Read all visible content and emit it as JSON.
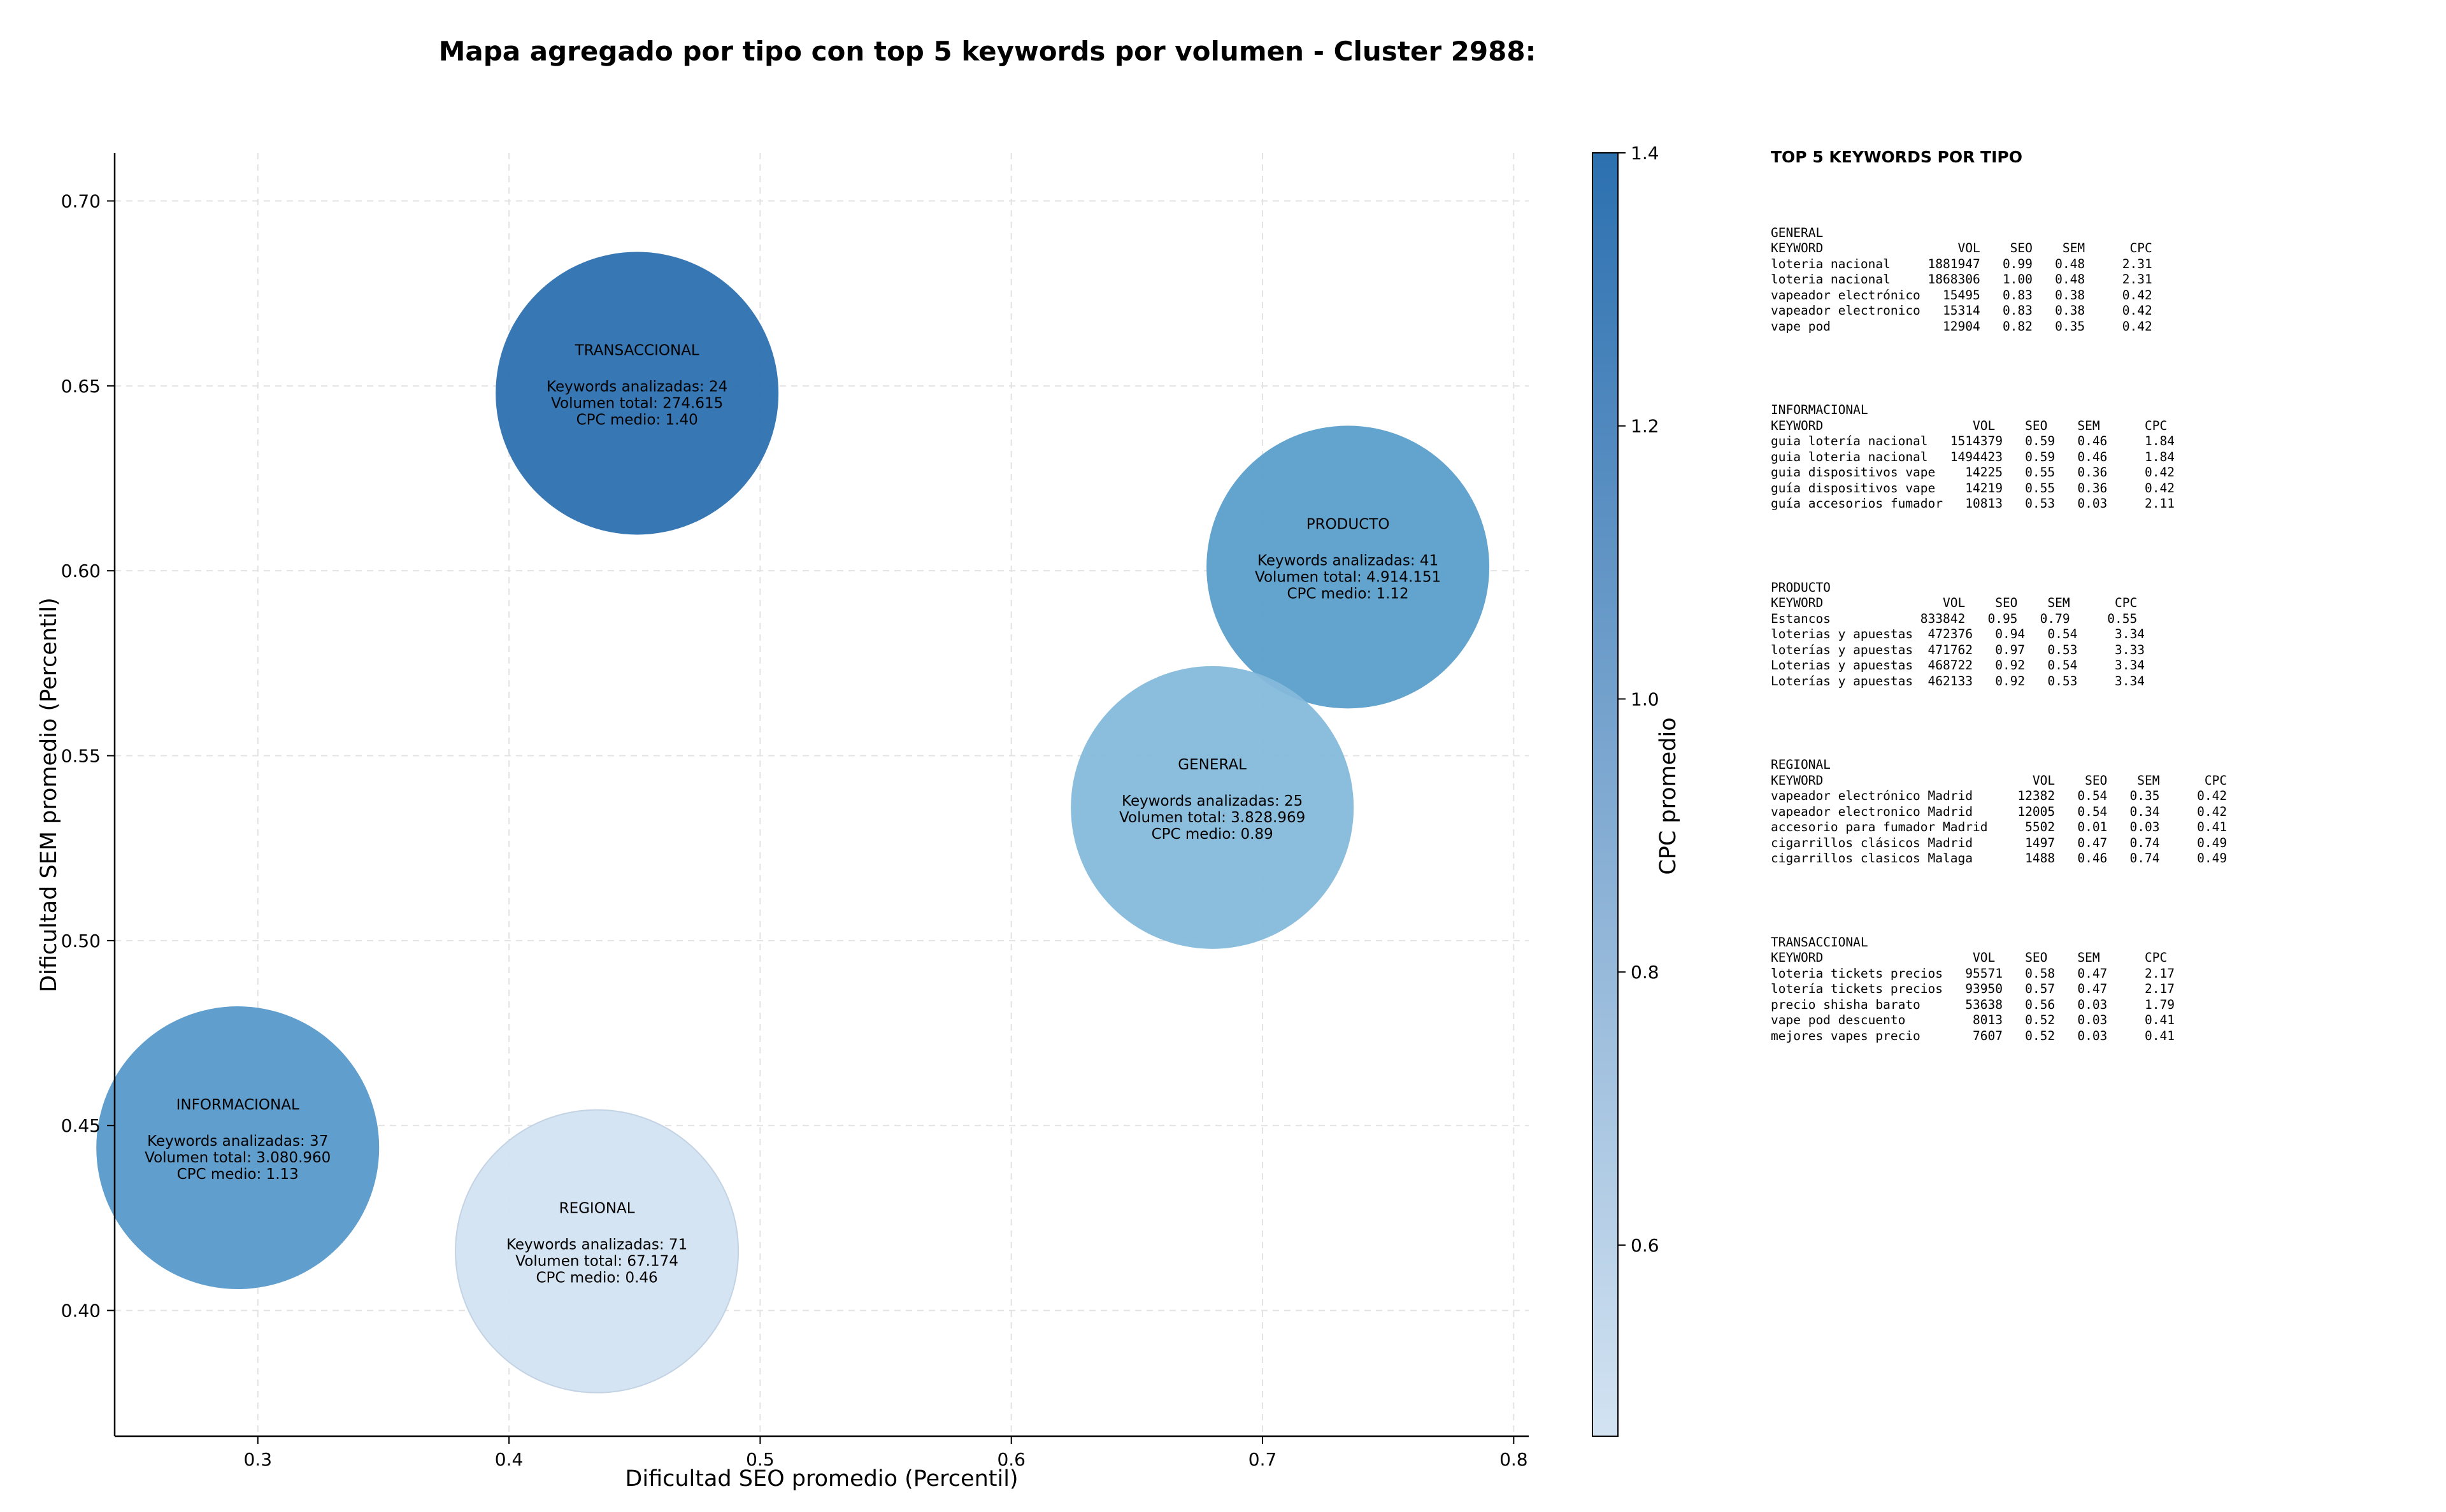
{
  "chart_data": {
    "type": "scatter",
    "title": "Mapa agregado por tipo con top 5 keywords por volumen - Cluster 2988:",
    "xlabel": "Dificultad SEO promedio (Percentil)",
    "ylabel": "Dificultad SEM promedio (Percentil)",
    "xlim": [
      0.243,
      0.806
    ],
    "ylim": [
      0.366,
      0.713
    ],
    "xticks": [
      "0.3",
      "0.4",
      "0.5",
      "0.6",
      "0.7",
      "0.8"
    ],
    "yticks": [
      "0.40",
      "0.45",
      "0.50",
      "0.55",
      "0.60",
      "0.65",
      "0.70"
    ],
    "grid": true,
    "colorbar": {
      "label": "CPC promedio",
      "range": [
        0.46,
        1.4
      ],
      "ticks": [
        "0.6",
        "0.8",
        "1.0",
        "1.2",
        "1.4"
      ],
      "color_low": "#d3e3f2",
      "color_high": "#2c70b0"
    },
    "points": [
      {
        "type_label": "TRANSACCIONAL",
        "x": 0.451,
        "y": 0.648,
        "cpc": 1.4,
        "keywords": "Keywords analizadas: 24",
        "volume": "Volumen total: 274.615",
        "cpc_text": "CPC medio: 1.40",
        "color": "#2c70b0"
      },
      {
        "type_label": "PRODUCTO",
        "x": 0.734,
        "y": 0.601,
        "cpc": 1.12,
        "keywords": "Keywords analizadas: 41",
        "volume": "Volumen total: 4.914.151",
        "cpc_text": "CPC medio: 1.12",
        "color": "#5b9fcc"
      },
      {
        "type_label": "GENERAL",
        "x": 0.68,
        "y": 0.536,
        "cpc": 0.89,
        "keywords": "Keywords analizadas: 25",
        "volume": "Volumen total: 3.828.969",
        "cpc_text": "CPC medio: 0.89",
        "color": "#85b9db"
      },
      {
        "type_label": "INFORMACIONAL",
        "x": 0.292,
        "y": 0.444,
        "cpc": 1.13,
        "keywords": "Keywords analizadas: 37",
        "volume": "Volumen total: 3.080.960",
        "cpc_text": "CPC medio: 1.13",
        "color": "#5799ca"
      },
      {
        "type_label": "REGIONAL",
        "x": 0.435,
        "y": 0.416,
        "cpc": 0.46,
        "keywords": "Keywords analizadas: 71",
        "volume": "Volumen total: 67.174",
        "cpc_text": "CPC medio: 0.46",
        "color": "#d3e3f2"
      }
    ]
  },
  "panel": {
    "title": "TOP 5 KEYWORDS POR TIPO",
    "groups": [
      {
        "name": "GENERAL",
        "lines": [
          "KEYWORD                  VOL    SEO    SEM      CPC",
          "loteria nacional     1881947   0.99   0.48     2.31",
          "loteria nacional     1868306   1.00   0.48     2.31",
          "vapeador electrónico   15495   0.83   0.38     0.42",
          "vapeador electronico   15314   0.83   0.38     0.42",
          "vape pod               12904   0.82   0.35     0.42"
        ]
      },
      {
        "name": "INFORMACIONAL",
        "lines": [
          "KEYWORD                    VOL    SEO    SEM      CPC",
          "guia lotería nacional   1514379   0.59   0.46     1.84",
          "guia loteria nacional   1494423   0.59   0.46     1.84",
          "guia dispositivos vape    14225   0.55   0.36     0.42",
          "guía dispositivos vape    14219   0.55   0.36     0.42",
          "guía accesorios fumador   10813   0.53   0.03     2.11"
        ]
      },
      {
        "name": "PRODUCTO",
        "lines": [
          "KEYWORD                VOL    SEO    SEM      CPC",
          "Estancos            833842   0.95   0.79     0.55",
          "loterias y apuestas  472376   0.94   0.54     3.34",
          "loterías y apuestas  471762   0.97   0.53     3.33",
          "Loterias y apuestas  468722   0.92   0.54     3.34",
          "Loterías y apuestas  462133   0.92   0.53     3.34"
        ]
      },
      {
        "name": "REGIONAL",
        "lines": [
          "KEYWORD                            VOL    SEO    SEM      CPC",
          "vapeador electrónico Madrid      12382   0.54   0.35     0.42",
          "vapeador electronico Madrid      12005   0.54   0.34     0.42",
          "accesorio para fumador Madrid     5502   0.01   0.03     0.41",
          "cigarrillos clásicos Madrid       1497   0.47   0.74     0.49",
          "cigarrillos clasicos Malaga       1488   0.46   0.74     0.49"
        ]
      },
      {
        "name": "TRANSACCIONAL",
        "lines": [
          "KEYWORD                    VOL    SEO    SEM      CPC",
          "loteria tickets precios   95571   0.58   0.47     2.17",
          "lotería tickets precios   93950   0.57   0.47     2.17",
          "precio shisha barato      53638   0.56   0.03     1.79",
          "vape pod descuento         8013   0.52   0.03     0.41",
          "mejores vapes precio       7607   0.52   0.03     0.41"
        ]
      }
    ]
  }
}
